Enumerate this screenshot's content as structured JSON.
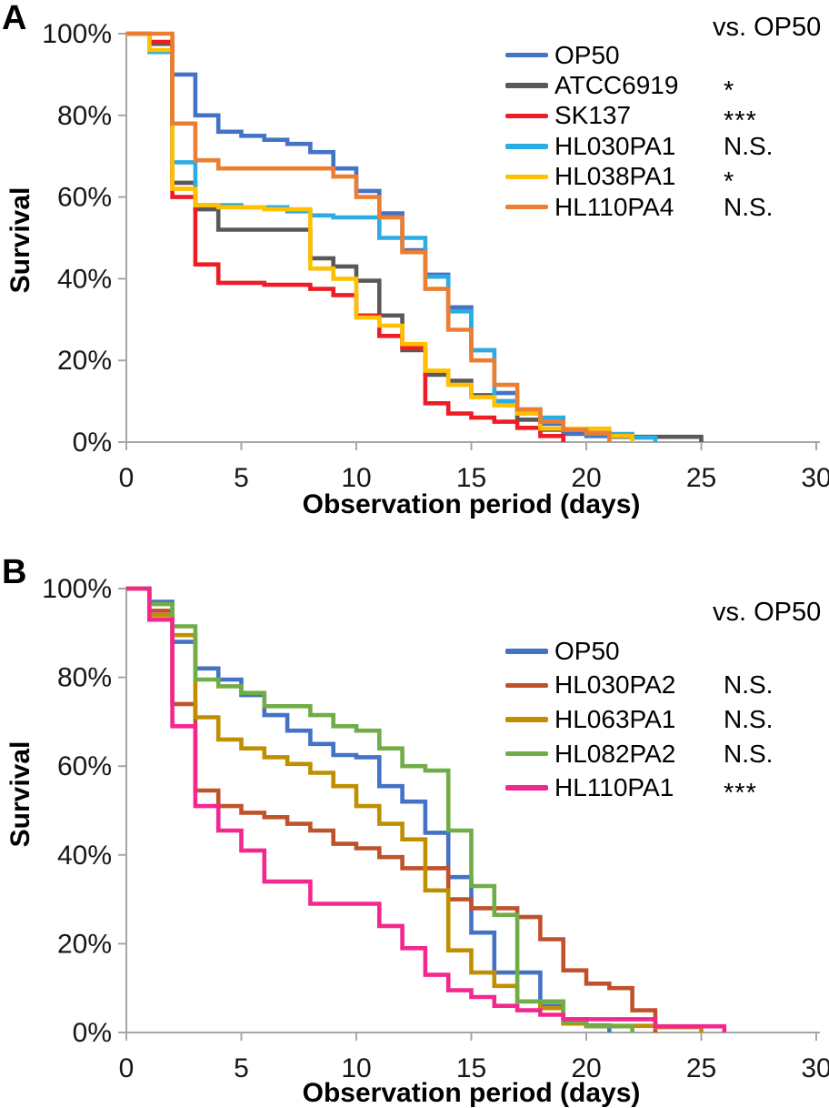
{
  "figure": {
    "type": "kaplan-meier-survival-figure",
    "panels": [
      "A",
      "B"
    ]
  },
  "chart_data": [
    {
      "panel_label": "A",
      "type": "line",
      "subtype": "step-survival-curve",
      "xlabel": "Observation period (days)",
      "ylabel": "Survival",
      "legend_header": "vs. OP50",
      "legend_position": "top-right",
      "grid": "off",
      "xlim": [
        0,
        30
      ],
      "ylim_percent": [
        0,
        100
      ],
      "x_ticks": [
        0,
        5,
        10,
        15,
        20,
        25,
        30
      ],
      "y_tick_labels": [
        "100%",
        "80%",
        "60%",
        "40%",
        "20%",
        "0%"
      ],
      "axis_color": "#a6a6a6",
      "series": [
        {
          "name": "OP50",
          "color": "#4472c4",
          "vs_op50": "",
          "steps_day_percent": [
            [
              0,
              100
            ],
            [
              1,
              97.5
            ],
            [
              2,
              90
            ],
            [
              3,
              80
            ],
            [
              4,
              76
            ],
            [
              5,
              75
            ],
            [
              6,
              74
            ],
            [
              7,
              73
            ],
            [
              8,
              71
            ],
            [
              9,
              67
            ],
            [
              10,
              61.5
            ],
            [
              11,
              56
            ],
            [
              12,
              47
            ],
            [
              13,
              41
            ],
            [
              14,
              33
            ],
            [
              15,
              22.5
            ],
            [
              16,
              12
            ],
            [
              17,
              5.5
            ],
            [
              18,
              4.5
            ],
            [
              19,
              2
            ],
            [
              20,
              1.5
            ],
            [
              21,
              0
            ]
          ]
        },
        {
          "name": "ATCC6919",
          "color": "#595959",
          "vs_op50": "*",
          "steps_day_percent": [
            [
              0,
              100
            ],
            [
              1,
              97.5
            ],
            [
              2,
              63.5
            ],
            [
              3,
              57
            ],
            [
              4,
              52
            ],
            [
              8,
              45
            ],
            [
              9,
              43
            ],
            [
              10,
              39.5
            ],
            [
              11,
              31
            ],
            [
              12,
              22.5
            ],
            [
              13,
              16.5
            ],
            [
              14,
              15
            ],
            [
              15,
              11.5
            ],
            [
              16,
              10
            ],
            [
              17,
              5.5
            ],
            [
              18,
              3
            ],
            [
              20,
              2.2
            ],
            [
              21,
              1.3
            ],
            [
              25,
              0
            ]
          ]
        },
        {
          "name": "SK137",
          "color": "#ee1c25",
          "vs_op50": "***",
          "steps_day_percent": [
            [
              0,
              100
            ],
            [
              1,
              98
            ],
            [
              2,
              60
            ],
            [
              3,
              43.5
            ],
            [
              4,
              39
            ],
            [
              6,
              38.5
            ],
            [
              8,
              37.5
            ],
            [
              9,
              36
            ],
            [
              10,
              31
            ],
            [
              11,
              26
            ],
            [
              12,
              23
            ],
            [
              13,
              9.5
            ],
            [
              14,
              7
            ],
            [
              15,
              6
            ],
            [
              16,
              5
            ],
            [
              17,
              3.5
            ],
            [
              18,
              1.5
            ],
            [
              19,
              0
            ]
          ]
        },
        {
          "name": "HL030PA1",
          "color": "#2bace2",
          "vs_op50": "N.S.",
          "steps_day_percent": [
            [
              0,
              100
            ],
            [
              1,
              95.5
            ],
            [
              2,
              68.5
            ],
            [
              3,
              58
            ],
            [
              5,
              57.5
            ],
            [
              7,
              56.5
            ],
            [
              8,
              55.5
            ],
            [
              9,
              55
            ],
            [
              11,
              50
            ],
            [
              13,
              40.5
            ],
            [
              14,
              32
            ],
            [
              15,
              22.5
            ],
            [
              16,
              10
            ],
            [
              17,
              8
            ],
            [
              18,
              6
            ],
            [
              19,
              3
            ],
            [
              20,
              2
            ],
            [
              22,
              1.1
            ],
            [
              23,
              0
            ]
          ]
        },
        {
          "name": "HL038PA1",
          "color": "#ffc000",
          "vs_op50": "*",
          "steps_day_percent": [
            [
              0,
              100
            ],
            [
              1,
              96
            ],
            [
              2,
              62
            ],
            [
              3,
              58
            ],
            [
              4,
              57.5
            ],
            [
              6,
              57
            ],
            [
              8,
              42.5
            ],
            [
              9,
              40
            ],
            [
              10,
              30.5
            ],
            [
              11,
              28.5
            ],
            [
              12,
              24
            ],
            [
              13,
              17.5
            ],
            [
              14,
              14
            ],
            [
              15,
              11
            ],
            [
              16,
              9
            ],
            [
              17,
              7
            ],
            [
              18,
              3.3
            ],
            [
              21,
              1.5
            ],
            [
              22,
              0
            ]
          ]
        },
        {
          "name": "HL110PA4",
          "color": "#ed7d31",
          "vs_op50": "N.S.",
          "steps_day_percent": [
            [
              0,
              100
            ],
            [
              2,
              78
            ],
            [
              3,
              69
            ],
            [
              4,
              67
            ],
            [
              9,
              65
            ],
            [
              10,
              60
            ],
            [
              11,
              55
            ],
            [
              12,
              46.5
            ],
            [
              13,
              37.5
            ],
            [
              14,
              27.5
            ],
            [
              15,
              20
            ],
            [
              16,
              14
            ],
            [
              17,
              8
            ],
            [
              18,
              5
            ],
            [
              19,
              3
            ],
            [
              20,
              2.2
            ],
            [
              21,
              0
            ]
          ]
        }
      ]
    },
    {
      "panel_label": "B",
      "type": "line",
      "subtype": "step-survival-curve",
      "xlabel": "Observation period (days)",
      "ylabel": "Survival",
      "legend_header": "vs. OP50",
      "legend_position": "top-right",
      "grid": "off",
      "xlim": [
        0,
        30
      ],
      "ylim_percent": [
        0,
        100
      ],
      "x_ticks": [
        0,
        5,
        10,
        15,
        20,
        25,
        30
      ],
      "y_tick_labels": [
        "100%",
        "80%",
        "60%",
        "40%",
        "20%",
        "0%"
      ],
      "axis_color": "#a6a6a6",
      "series": [
        {
          "name": "OP50",
          "color": "#4472c4",
          "vs_op50": "",
          "steps_day_percent": [
            [
              0,
              100
            ],
            [
              1,
              97
            ],
            [
              2,
              88
            ],
            [
              3,
              82
            ],
            [
              4,
              79.5
            ],
            [
              5,
              76
            ],
            [
              6,
              71.5
            ],
            [
              7,
              68
            ],
            [
              8,
              65
            ],
            [
              9,
              62.5
            ],
            [
              10,
              62
            ],
            [
              11,
              55.5
            ],
            [
              12,
              52
            ],
            [
              13,
              45
            ],
            [
              14,
              35
            ],
            [
              15,
              22.5
            ],
            [
              16,
              13.5
            ],
            [
              18,
              6
            ],
            [
              19,
              3
            ],
            [
              20,
              1.6
            ],
            [
              21,
              0
            ]
          ]
        },
        {
          "name": "HL030PA2",
          "color": "#c0522b",
          "vs_op50": "N.S.",
          "steps_day_percent": [
            [
              0,
              100
            ],
            [
              1,
              95
            ],
            [
              2,
              74
            ],
            [
              3,
              54.5
            ],
            [
              4,
              51
            ],
            [
              5,
              49.5
            ],
            [
              6,
              48.5
            ],
            [
              7,
              47
            ],
            [
              8,
              45.5
            ],
            [
              9,
              42.5
            ],
            [
              10,
              41.5
            ],
            [
              11,
              39.5
            ],
            [
              12,
              37
            ],
            [
              14,
              30
            ],
            [
              15,
              28
            ],
            [
              17,
              26
            ],
            [
              18,
              21
            ],
            [
              19,
              14
            ],
            [
              20,
              11
            ],
            [
              21,
              10
            ],
            [
              22,
              5
            ],
            [
              23,
              0
            ]
          ]
        },
        {
          "name": "HL063PA1",
          "color": "#bf8f00",
          "vs_op50": "N.S.",
          "steps_day_percent": [
            [
              0,
              100
            ],
            [
              1,
              94
            ],
            [
              2,
              89.5
            ],
            [
              3,
              71
            ],
            [
              4,
              66
            ],
            [
              5,
              64
            ],
            [
              6,
              62
            ],
            [
              7,
              60.5
            ],
            [
              8,
              58.5
            ],
            [
              9,
              55.5
            ],
            [
              10,
              51
            ],
            [
              11,
              47
            ],
            [
              12,
              43.5
            ],
            [
              13,
              32
            ],
            [
              14,
              18.5
            ],
            [
              15,
              13.5
            ],
            [
              16,
              10.5
            ],
            [
              17,
              7
            ],
            [
              18,
              5.5
            ],
            [
              19,
              2
            ],
            [
              20,
              1.5
            ],
            [
              23,
              1.2
            ],
            [
              25,
              0
            ]
          ]
        },
        {
          "name": "HL082PA2",
          "color": "#70ad47",
          "vs_op50": "N.S.",
          "steps_day_percent": [
            [
              0,
              100
            ],
            [
              1,
              96.5
            ],
            [
              2,
              91.5
            ],
            [
              3,
              79.5
            ],
            [
              4,
              78
            ],
            [
              5,
              76.5
            ],
            [
              6,
              73.5
            ],
            [
              8,
              71.5
            ],
            [
              9,
              69
            ],
            [
              10,
              68
            ],
            [
              11,
              64
            ],
            [
              12,
              60
            ],
            [
              13,
              59
            ],
            [
              14,
              45.5
            ],
            [
              15,
              33
            ],
            [
              16,
              26.5
            ],
            [
              17,
              7
            ],
            [
              19,
              2.4
            ],
            [
              20,
              1.4
            ],
            [
              22,
              0
            ]
          ]
        },
        {
          "name": "HL110PA1",
          "color": "#f4278f",
          "vs_op50": "***",
          "steps_day_percent": [
            [
              0,
              100
            ],
            [
              1,
              93
            ],
            [
              2,
              69
            ],
            [
              3,
              51
            ],
            [
              4,
              45.5
            ],
            [
              5,
              41
            ],
            [
              6,
              34
            ],
            [
              8,
              29
            ],
            [
              11,
              24
            ],
            [
              12,
              19
            ],
            [
              13,
              13
            ],
            [
              14,
              9.5
            ],
            [
              15,
              8
            ],
            [
              16,
              6
            ],
            [
              17,
              5
            ],
            [
              18,
              4
            ],
            [
              19,
              3
            ],
            [
              23,
              1.4
            ],
            [
              26,
              0
            ]
          ]
        }
      ]
    }
  ]
}
